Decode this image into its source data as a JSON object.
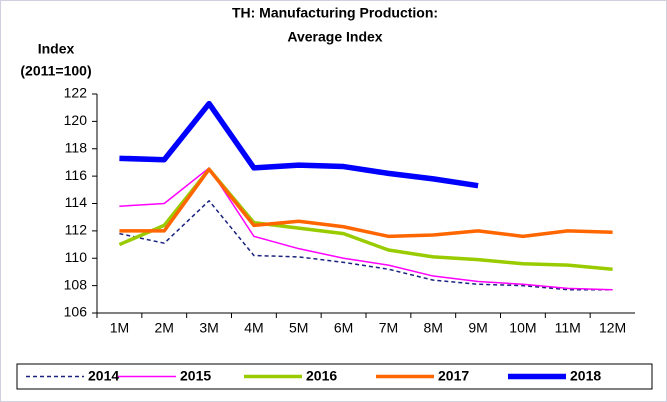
{
  "chart_data": {
    "type": "line",
    "title": [
      "TH: Manufacturing Production:",
      "Average Index"
    ],
    "y_label": [
      "Index",
      "(2011=100)"
    ],
    "categories": [
      "1M",
      "2M",
      "3M",
      "4M",
      "5M",
      "6M",
      "7M",
      "8M",
      "9M",
      "10M",
      "11M",
      "12M"
    ],
    "series": [
      {
        "name": "2014",
        "color": "#1a237e",
        "dash": true,
        "width": 1.5,
        "values": [
          111.8,
          111.1,
          114.2,
          110.2,
          110.1,
          109.7,
          109.2,
          108.4,
          108.1,
          108.0,
          107.7,
          107.7
        ]
      },
      {
        "name": "2015",
        "color": "#ff00ff",
        "dash": false,
        "width": 1.5,
        "values": [
          113.8,
          114.0,
          116.6,
          111.6,
          110.7,
          110.0,
          109.5,
          108.7,
          108.3,
          108.1,
          107.8,
          107.7
        ]
      },
      {
        "name": "2016",
        "color": "#99cc00",
        "dash": false,
        "width": 3.5,
        "values": [
          111.0,
          112.4,
          116.5,
          112.6,
          112.2,
          111.8,
          110.6,
          110.1,
          109.9,
          109.6,
          109.5,
          109.2
        ]
      },
      {
        "name": "2017",
        "color": "#ff6600",
        "dash": false,
        "width": 3.5,
        "values": [
          112.0,
          112.0,
          116.5,
          112.4,
          112.7,
          112.3,
          111.6,
          111.7,
          112.0,
          111.6,
          112.0,
          111.9
        ]
      },
      {
        "name": "2018",
        "color": "#0000ff",
        "dash": false,
        "width": 5.5,
        "values": [
          117.3,
          117.2,
          121.3,
          116.6,
          116.8,
          116.7,
          116.2,
          115.8,
          115.3,
          null,
          null,
          null
        ]
      }
    ],
    "ylim": [
      106,
      122
    ],
    "yticks": [
      106,
      108,
      110,
      112,
      114,
      116,
      118,
      120,
      122
    ],
    "grid": false,
    "legend": "bottom"
  }
}
